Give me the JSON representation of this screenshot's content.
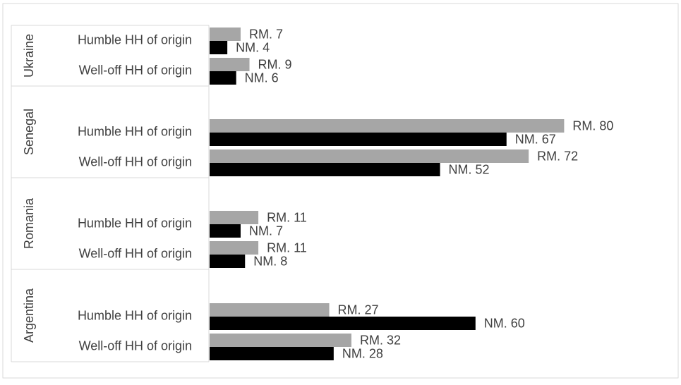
{
  "chart_data": {
    "type": "bar",
    "orientation": "horizontal",
    "grid": false,
    "legend": "none",
    "colors": {
      "rm": "#a6a6a6",
      "nm": "#000000",
      "frame": "#d9d9d9",
      "text": "#404040"
    },
    "groups": [
      {
        "country": "Ukraine",
        "rows": [
          {
            "label": "Humble HH of origin",
            "rm_label": "RM. 7",
            "rm": 7,
            "nm_label": "NM. 4",
            "nm": 4
          },
          {
            "label": "Well-off HH of origin",
            "rm_label": "RM. 9",
            "rm": 9,
            "nm_label": "NM. 6",
            "nm": 6
          }
        ]
      },
      {
        "country": "Senegal",
        "rows": [
          {
            "label": "Humble HH of origin",
            "rm_label": "RM. 80",
            "rm": 80,
            "nm_label": "NM. 67",
            "nm": 67
          },
          {
            "label": "Well-off HH of origin",
            "rm_label": "RM. 72",
            "rm": 72,
            "nm_label": "NM. 52",
            "nm": 52
          }
        ]
      },
      {
        "country": "Romania",
        "rows": [
          {
            "label": "Humble HH of origin",
            "rm_label": "RM. 11",
            "rm": 11,
            "nm_label": "NM. 7",
            "nm": 7
          },
          {
            "label": "Well-off HH of origin",
            "rm_label": "RM. 11",
            "rm": 11,
            "nm_label": "NM. 8",
            "nm": 8
          }
        ]
      },
      {
        "country": "Argentina",
        "rows": [
          {
            "label": "Humble HH of origin",
            "rm_label": "RM. 27",
            "rm": 27,
            "nm_label": "NM. 60",
            "nm": 60
          },
          {
            "label": "Well-off HH of origin",
            "rm_label": "RM. 32",
            "rm": 32,
            "nm_label": "NM. 28",
            "nm": 28
          }
        ]
      }
    ]
  }
}
